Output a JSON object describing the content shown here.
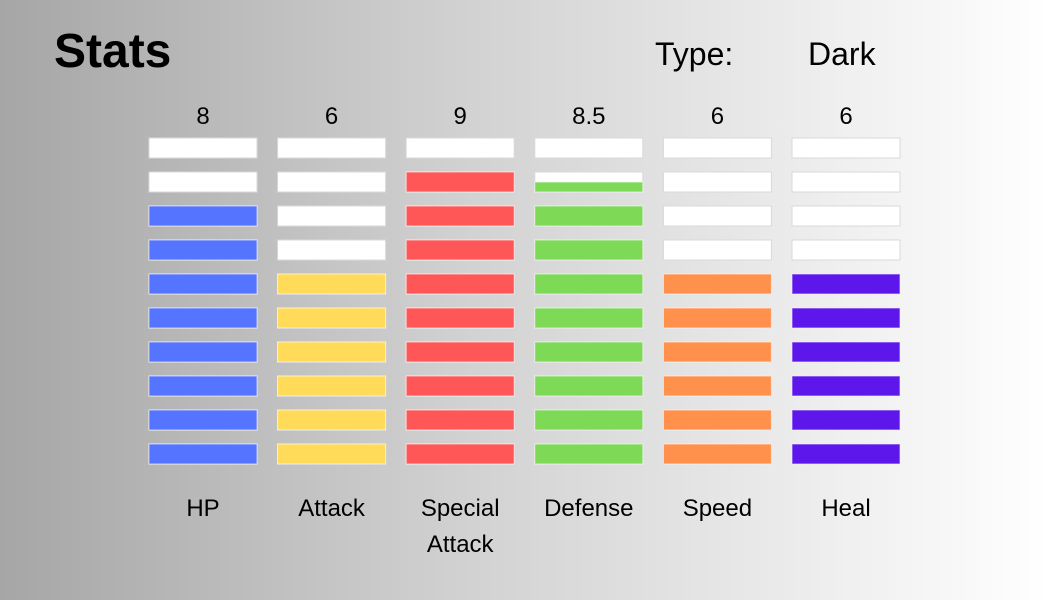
{
  "header": {
    "title": "Stats",
    "type_label": "Type:",
    "type_value": "Dark"
  },
  "chart_data": {
    "type": "bar",
    "max_segments": 10,
    "grid": false,
    "categories": [
      "HP",
      "Attack",
      "Special Attack",
      "Defense",
      "Speed",
      "Heal"
    ],
    "category_lines": [
      [
        "HP"
      ],
      [
        "Attack"
      ],
      [
        "Special",
        "Attack"
      ],
      [
        "Defense"
      ],
      [
        "Speed"
      ],
      [
        "Heal"
      ]
    ],
    "value_labels": [
      "8",
      "6",
      "9",
      "8.5",
      "6",
      "6"
    ],
    "values": [
      8,
      6,
      9,
      8.5,
      6,
      6
    ],
    "colors": [
      "#5574ff",
      "#ffdb59",
      "#ff5757",
      "#7ed957",
      "#ff914d",
      "#5e17eb"
    ],
    "empty_color": "#ffffff"
  }
}
